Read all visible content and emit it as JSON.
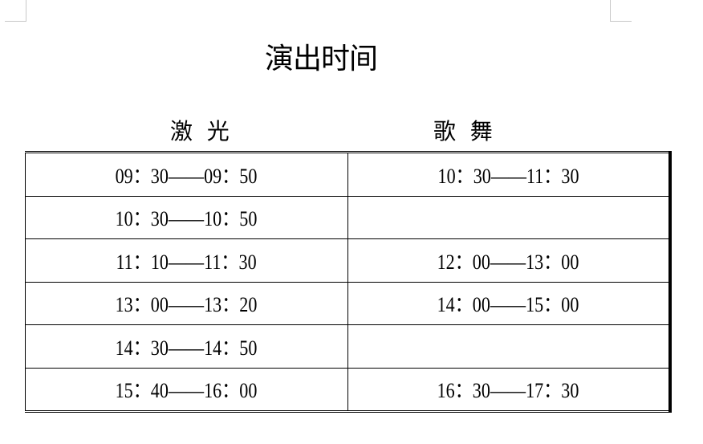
{
  "title": "演出时间",
  "columns": [
    "激  光",
    "歌  舞"
  ],
  "rows": [
    [
      "09：30——09：50",
      "10：30——11：30"
    ],
    [
      "10：30——10：50",
      ""
    ],
    [
      "11：10——11：30",
      "12：00——13：00"
    ],
    [
      "13：00——13：20",
      "14：00——15：00"
    ],
    [
      "14：30——14：50",
      ""
    ],
    [
      "15：40——16：00",
      "16：30——17：30"
    ]
  ]
}
